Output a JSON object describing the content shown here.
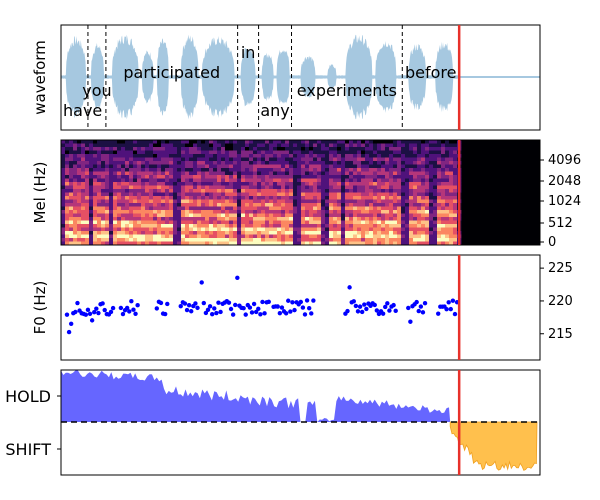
{
  "chart_data": [
    {
      "type": "line",
      "panel": "waveform",
      "ylabel": "waveform",
      "xlim": [
        0,
        8.0
      ],
      "words": [
        {
          "text": "have",
          "start": 0.0,
          "end": 0.45,
          "level": "low"
        },
        {
          "text": "you",
          "start": 0.45,
          "end": 0.75,
          "level": "mid"
        },
        {
          "text": "participated",
          "start": 0.75,
          "end": 2.95,
          "level": "upper"
        },
        {
          "text": "in",
          "start": 2.95,
          "end": 3.3,
          "level": "top"
        },
        {
          "text": "any",
          "start": 3.3,
          "end": 3.85,
          "level": "low"
        },
        {
          "text": "experiments",
          "start": 3.85,
          "end": 5.7,
          "level": "mid"
        },
        {
          "text": "before",
          "start": 5.7,
          "end": 6.65,
          "level": "upper"
        }
      ],
      "boundaries": [
        0.45,
        0.75,
        2.95,
        3.3,
        3.85,
        5.7
      ],
      "marker_x": 6.65,
      "wave_color": "#a6c8e0",
      "marker_color": "#e8312a"
    },
    {
      "type": "heatmap",
      "panel": "mel",
      "ylabel": "Mel (Hz)",
      "yticks": [
        "0",
        "512",
        "1024",
        "2048",
        "4096"
      ],
      "marker_x": 6.65,
      "colormap": "magma"
    },
    {
      "type": "scatter",
      "panel": "f0",
      "ylabel": "F0 (Hz)",
      "yticks": [
        "215",
        "220",
        "225"
      ],
      "ylim": [
        211,
        227
      ],
      "voiced_segments": [
        [
          0.1,
          0.9
        ],
        [
          1.0,
          1.3
        ],
        [
          1.6,
          1.8
        ],
        [
          2.0,
          2.3
        ],
        [
          2.35,
          3.5
        ],
        [
          3.55,
          4.25
        ],
        [
          4.75,
          5.6
        ],
        [
          5.8,
          6.1
        ],
        [
          6.3,
          6.65
        ]
      ],
      "baseline_hz": 219,
      "point_color": "#0000ff",
      "marker_x": 6.65
    },
    {
      "type": "area",
      "panel": "turn",
      "class_labels": [
        "HOLD",
        "SHIFT"
      ],
      "hold_color": "#6666ff",
      "shift_color": "#ffc04d",
      "marker_x": 6.65
    }
  ]
}
